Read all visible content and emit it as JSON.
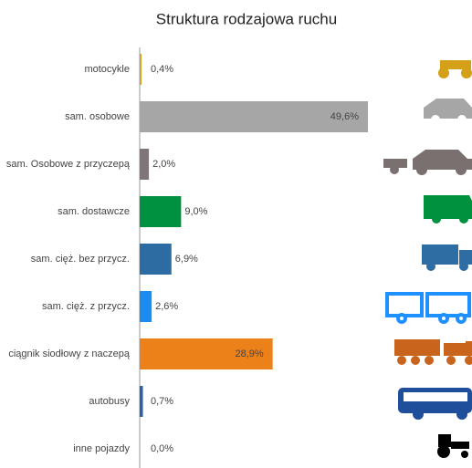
{
  "chart_data": {
    "type": "bar",
    "orientation": "horizontal",
    "title": "Struktura rodzajowa ruchu",
    "categories": [
      "motocykle",
      "sam. osobowe",
      "sam. Osobowe z przyczepą",
      "sam. dostawcze",
      "sam. cięż. bez przycz.",
      "sam. cięż. z przycz.",
      "ciągnik siodłowy z naczepą",
      "autobusy",
      "inne pojazdy"
    ],
    "values": [
      0.4,
      49.6,
      2.0,
      9.0,
      6.9,
      2.6,
      28.9,
      0.7,
      0.0
    ],
    "value_labels": [
      "0,4%",
      "49,6%",
      "2,0%",
      "9,0%",
      "6,9%",
      "2,6%",
      "28,9%",
      "0,7%",
      "0,0%"
    ],
    "colors": [
      "#d9a521",
      "#a6a6a6",
      "#7f7777",
      "#009140",
      "#2d6ca3",
      "#1a8cef",
      "#ed8119",
      "#2f5faa",
      "#000000"
    ]
  }
}
